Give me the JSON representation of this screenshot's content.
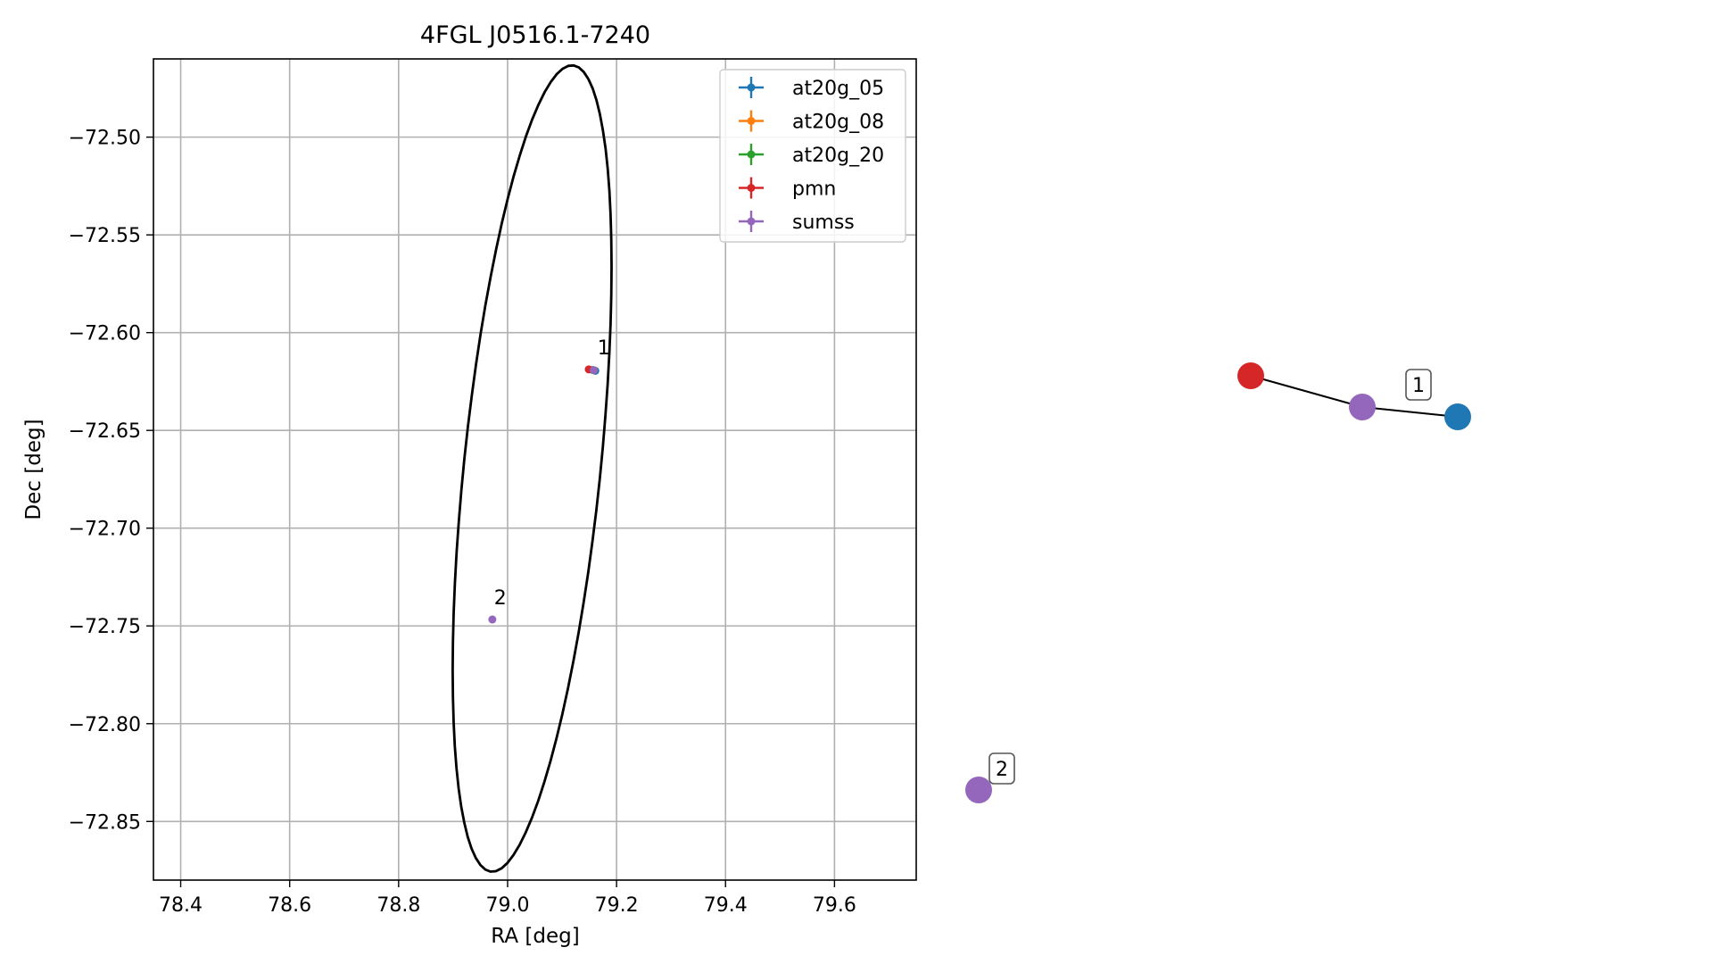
{
  "chart_data": [
    {
      "type": "scatter",
      "title": "4FGL J0516.1-7240",
      "xlabel": "RA [deg]",
      "ylabel": "Dec [deg]",
      "xlim": [
        78.35,
        79.75
      ],
      "ylim": [
        -72.88,
        -72.46
      ],
      "xticks": [
        78.4,
        78.6,
        78.8,
        79.0,
        79.2,
        79.4,
        79.6
      ],
      "xtick_labels": [
        "78.4",
        "78.6",
        "78.8",
        "79.0",
        "79.2",
        "79.4",
        "79.6"
      ],
      "yticks": [
        -72.5,
        -72.55,
        -72.6,
        -72.65,
        -72.7,
        -72.75,
        -72.8,
        -72.85
      ],
      "ytick_labels": [
        "−72.50",
        "−72.55",
        "−72.60",
        "−72.65",
        "−72.70",
        "−72.75",
        "−72.80",
        "−72.85"
      ],
      "grid": true,
      "legend_position": "top-right",
      "series": [
        {
          "name": "at20g_05",
          "color": "#1f77b4",
          "points": [
            {
              "x": 79.161,
              "y": -72.6195
            }
          ]
        },
        {
          "name": "at20g_08",
          "color": "#ff7f0e",
          "points": [
            {
              "x": 79.158,
              "y": -72.6192
            }
          ]
        },
        {
          "name": "at20g_20",
          "color": "#2ca02c",
          "points": [
            {
              "x": 79.156,
              "y": -72.6191
            }
          ]
        },
        {
          "name": "pmn",
          "color": "#d62728",
          "points": [
            {
              "x": 79.149,
              "y": -72.6188
            }
          ]
        },
        {
          "name": "sumss",
          "color": "#9467bd",
          "points": [
            {
              "x": 79.158,
              "y": -72.6192
            },
            {
              "x": 78.972,
              "y": -72.7467
            }
          ]
        }
      ],
      "annotations": [
        {
          "text": "1",
          "x": 79.165,
          "y": -72.611
        },
        {
          "text": "2",
          "x": 78.975,
          "y": -72.739
        }
      ],
      "ellipse": {
        "center_x": 79.045,
        "center_y": -72.6695,
        "semi_axis_a": 0.2244,
        "semi_axis_b": 0.1159,
        "angle_deg": 62.6,
        "color": "#000000"
      }
    },
    {
      "type": "network",
      "nodes": [
        {
          "id": "pmn",
          "color": "#d62728"
        },
        {
          "id": "sumss-1",
          "color": "#9467bd"
        },
        {
          "id": "at20g",
          "color": "#1f77b4"
        },
        {
          "id": "sumss-2",
          "color": "#9467bd"
        }
      ],
      "edges": [
        [
          "pmn",
          "sumss-1"
        ],
        [
          "sumss-1",
          "at20g"
        ]
      ],
      "labels": [
        {
          "text": "1",
          "group": "1"
        },
        {
          "text": "2",
          "group": "2"
        }
      ]
    }
  ]
}
